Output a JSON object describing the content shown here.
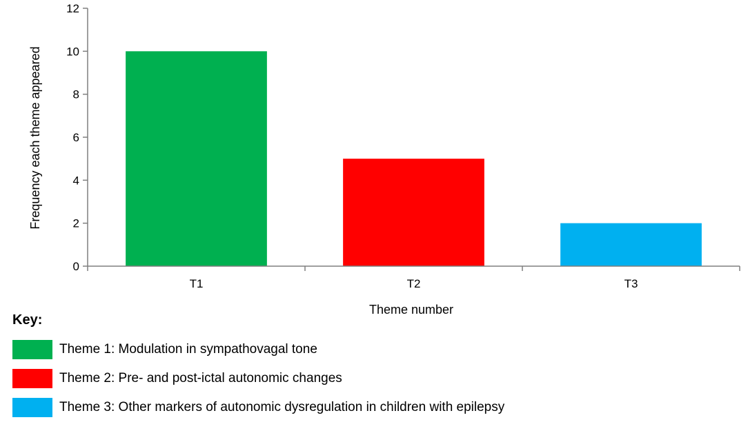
{
  "chart_data": {
    "type": "bar",
    "categories": [
      "T1",
      "T2",
      "T3"
    ],
    "values": [
      10,
      5,
      2
    ],
    "colors": [
      "#00b050",
      "#ff0000",
      "#00b0f0"
    ],
    "title": "",
    "xlabel": "Theme number",
    "ylabel": "Frequency each theme appeared",
    "ylim": [
      0,
      12
    ],
    "yticks": [
      0,
      2,
      4,
      6,
      8,
      10,
      12
    ],
    "grid": false
  },
  "key": {
    "title": "Key:",
    "items": [
      {
        "label": "Theme 1: Modulation in sympathovagal tone",
        "color": "#00b050"
      },
      {
        "label": "Theme 2: Pre- and post-ictal autonomic changes",
        "color": "#ff0000"
      },
      {
        "label": "Theme 3: Other markers of autonomic dysregulation in children with epilepsy",
        "color": "#00b0f0"
      }
    ]
  }
}
